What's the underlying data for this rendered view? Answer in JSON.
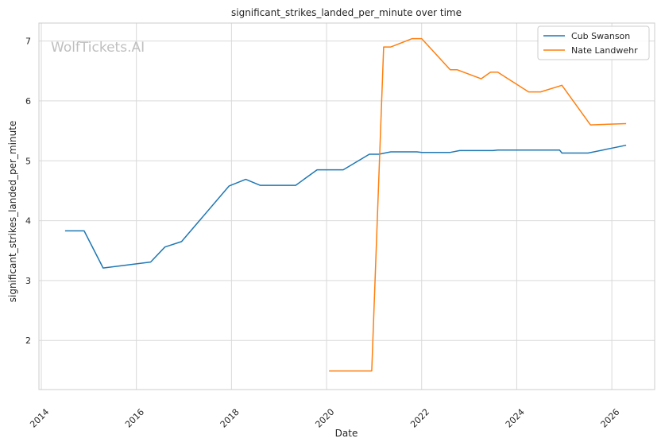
{
  "chart_data": {
    "type": "line",
    "title": "significant_strikes_landed_per_minute over time",
    "xlabel": "Date",
    "ylabel": "significant_strikes_landed_per_minute",
    "watermark": "WolfTickets.AI",
    "xlim": [
      2013.95,
      2026.9
    ],
    "ylim": [
      1.18,
      7.3
    ],
    "x_ticks": [
      2014,
      2016,
      2018,
      2020,
      2022,
      2024,
      2026
    ],
    "y_ticks": [
      2,
      3,
      4,
      5,
      6,
      7
    ],
    "grid": true,
    "legend_position": "top-right",
    "series": [
      {
        "name": "Cub Swanson",
        "color": "#1f77b4",
        "points": [
          [
            2014.5,
            3.83
          ],
          [
            2014.9,
            3.83
          ],
          [
            2015.3,
            3.21
          ],
          [
            2016.3,
            3.31
          ],
          [
            2016.6,
            3.56
          ],
          [
            2016.95,
            3.65
          ],
          [
            2017.95,
            4.58
          ],
          [
            2018.3,
            4.69
          ],
          [
            2018.6,
            4.59
          ],
          [
            2019.35,
            4.59
          ],
          [
            2019.8,
            4.85
          ],
          [
            2020.35,
            4.85
          ],
          [
            2020.9,
            5.11
          ],
          [
            2021.1,
            5.11
          ],
          [
            2021.35,
            5.15
          ],
          [
            2021.9,
            5.15
          ],
          [
            2022.0,
            5.14
          ],
          [
            2022.6,
            5.14
          ],
          [
            2022.8,
            5.17
          ],
          [
            2023.5,
            5.17
          ],
          [
            2023.6,
            5.18
          ],
          [
            2024.9,
            5.18
          ],
          [
            2024.95,
            5.13
          ],
          [
            2025.5,
            5.13
          ],
          [
            2026.3,
            5.26
          ]
        ]
      },
      {
        "name": "Nate Landwehr",
        "color": "#ff7f0e",
        "points": [
          [
            2020.05,
            1.49
          ],
          [
            2020.95,
            1.49
          ],
          [
            2021.2,
            6.9
          ],
          [
            2021.35,
            6.9
          ],
          [
            2021.8,
            7.04
          ],
          [
            2022.0,
            7.04
          ],
          [
            2022.6,
            6.52
          ],
          [
            2022.75,
            6.52
          ],
          [
            2023.25,
            6.37
          ],
          [
            2023.45,
            6.48
          ],
          [
            2023.6,
            6.48
          ],
          [
            2024.25,
            6.15
          ],
          [
            2024.5,
            6.15
          ],
          [
            2024.95,
            6.26
          ],
          [
            2025.55,
            5.6
          ],
          [
            2026.3,
            5.62
          ]
        ]
      }
    ]
  }
}
